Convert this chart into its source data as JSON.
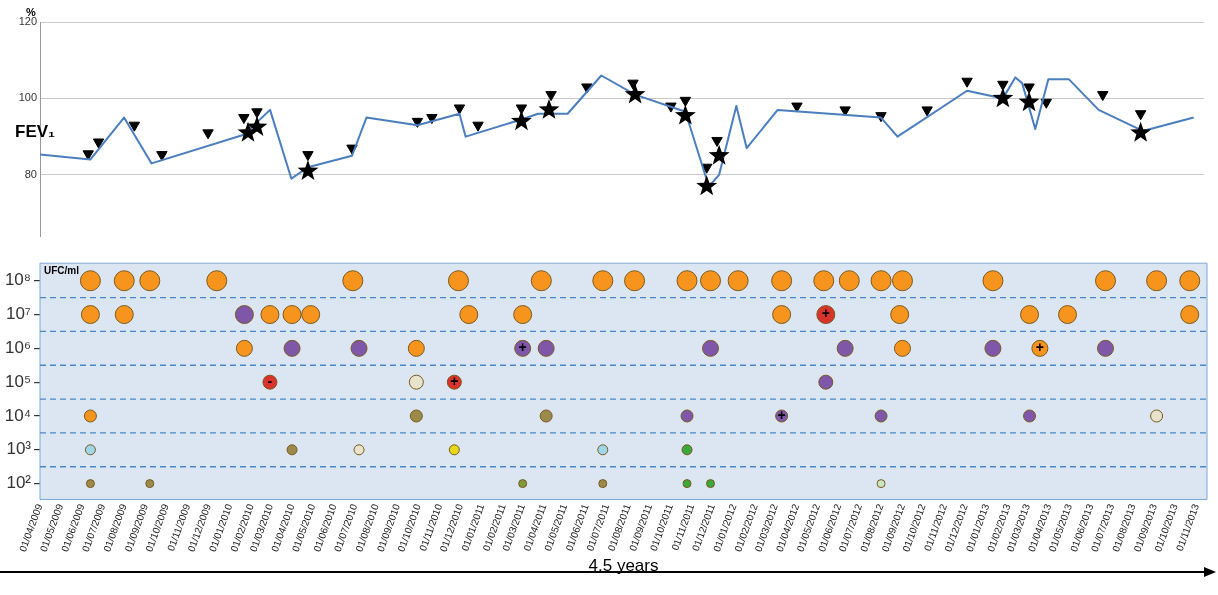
{
  "chart_data": [
    {
      "type": "line",
      "ylabel": "%",
      "xlim": [
        "2009-04-01",
        "2013-11-16"
      ],
      "ylim": [
        64,
        120
      ],
      "yticks": [
        80,
        100,
        120
      ],
      "grid": "y",
      "tick_labels": "y",
      "legend": false,
      "series": [
        {
          "name": "FEV₁",
          "color": "#4a7ebf",
          "marker": "none",
          "x": [
            "2009-04-01",
            "2009-06-13",
            "2009-08-01",
            "2009-09-10",
            "2010-01-22",
            "2010-03-01",
            "2010-04-01",
            "2010-04-25",
            "2010-06-28",
            "2010-07-19",
            "2010-10-01",
            "2010-12-01",
            "2010-12-10",
            "2011-03-01",
            "2011-03-25",
            "2011-05-07",
            "2011-06-25",
            "2011-08-13",
            "2011-10-25",
            "2011-11-28",
            "2011-12-13",
            "2012-01-07",
            "2012-01-22",
            "2012-03-07",
            "2012-08-04",
            "2012-08-28",
            "2012-12-07",
            "2013-01-28",
            "2013-02-15",
            "2013-02-25",
            "2013-03-16",
            "2013-04-04",
            "2013-05-04",
            "2013-06-16",
            "2013-08-19",
            "2013-11-01"
          ],
          "values": [
            85.3,
            84,
            95,
            83,
            90.5,
            97,
            79,
            82,
            85,
            95,
            93,
            96,
            90,
            94.5,
            96,
            96,
            106,
            101,
            96.5,
            77,
            80,
            98,
            87,
            97,
            95,
            90,
            102,
            100,
            105.5,
            104,
            92,
            105,
            105,
            97,
            91.5,
            95
          ]
        },
        {
          "type": "scatter",
          "color": "#000000",
          "marker": "triangle",
          "x": [
            "2009-06-10",
            "2009-06-25",
            "2009-08-16",
            "2009-09-25",
            "2009-12-01",
            "2010-01-22",
            "2010-02-10",
            "2010-04-25",
            "2010-06-28",
            "2010-10-01",
            "2010-10-22",
            "2010-12-01",
            "2010-12-28",
            "2011-03-01",
            "2011-04-13",
            "2011-06-04",
            "2011-08-10",
            "2011-10-04",
            "2011-10-25",
            "2011-11-25",
            "2011-12-10",
            "2012-04-04",
            "2012-06-13",
            "2012-08-04",
            "2012-10-10",
            "2012-12-07",
            "2013-01-28",
            "2013-03-07",
            "2013-04-01",
            "2013-06-22",
            "2013-08-16"
          ],
          "values": [
            85.5,
            88.6,
            93,
            85.3,
            91,
            95,
            96.5,
            85.3,
            87,
            94,
            95,
            97.5,
            93,
            97.5,
            101,
            103,
            104,
            98,
            99.5,
            82,
            89,
            98,
            97,
            95.5,
            97,
            104.5,
            103.7,
            103,
            99,
            101,
            96
          ]
        },
        {
          "type": "scatter",
          "color": "#000000",
          "marker": "star",
          "x": [
            "2010-01-28",
            "2010-02-10",
            "2010-04-25",
            "2011-03-01",
            "2011-04-10",
            "2011-08-13",
            "2011-10-25",
            "2011-11-25",
            "2011-12-13",
            "2013-01-28",
            "2013-03-07",
            "2013-08-16"
          ],
          "values": [
            91,
            92.5,
            81,
            94,
            97,
            101,
            95.5,
            77,
            85,
            100,
            99,
            91
          ]
        }
      ]
    },
    {
      "type": "scatter",
      "ylabel": "UFC/ml",
      "xlabel": "4,5 years",
      "log": "y",
      "xlim": [
        "2009-04-01",
        "2013-11-16"
      ],
      "ylim": [
        34,
        330000000
      ],
      "yticks": [
        {
          "value": 100,
          "label": "10²"
        },
        {
          "value": 1000,
          "label": "10³"
        },
        {
          "value": 10000,
          "label": "10⁴"
        },
        {
          "value": 100000,
          "label": "10⁵"
        },
        {
          "value": 1000000,
          "label": "10⁶"
        },
        {
          "value": 10000000,
          "label": "10⁷"
        },
        {
          "value": 100000000,
          "label": "10⁸"
        }
      ],
      "ref_lines": [
        {
          "axis": "y",
          "value": 316,
          "color": "#4a86c8",
          "line_style": "dashed"
        },
        {
          "axis": "y",
          "value": 3162,
          "color": "#4a86c8",
          "line_style": "dashed"
        },
        {
          "axis": "y",
          "value": 31623,
          "color": "#4a86c8",
          "line_style": "dashed"
        },
        {
          "axis": "y",
          "value": 316228,
          "color": "#4a86c8",
          "line_style": "dashed"
        },
        {
          "axis": "y",
          "value": 3162278,
          "color": "#4a86c8",
          "line_style": "dashed"
        },
        {
          "axis": "y",
          "value": 31622777,
          "color": "#4a86c8",
          "line_style": "dashed"
        }
      ],
      "xticks": [
        {
          "value": "2009-04-01",
          "label": "01/04/2009"
        },
        {
          "value": "2009-05-01",
          "label": "01/05/2009"
        },
        {
          "value": "2009-06-01",
          "label": "01/06/2009"
        },
        {
          "value": "2009-07-01",
          "label": "01/07/2009"
        },
        {
          "value": "2009-08-01",
          "label": "01/08/2009"
        },
        {
          "value": "2009-09-01",
          "label": "01/09/2009"
        },
        {
          "value": "2009-10-01",
          "label": "01/10/2009"
        },
        {
          "value": "2009-11-01",
          "label": "01/11/2009"
        },
        {
          "value": "2009-12-01",
          "label": "01/12/2009"
        },
        {
          "value": "2010-01-01",
          "label": "01/01/2010"
        },
        {
          "value": "2010-02-01",
          "label": "01/02/2010"
        },
        {
          "value": "2010-03-01",
          "label": "01/03/2010"
        },
        {
          "value": "2010-04-01",
          "label": "01/04/2010"
        },
        {
          "value": "2010-05-01",
          "label": "01/05/2010"
        },
        {
          "value": "2010-06-01",
          "label": "01/06/2010"
        },
        {
          "value": "2010-07-01",
          "label": "01/07/2010"
        },
        {
          "value": "2010-08-01",
          "label": "01/08/2010"
        },
        {
          "value": "2010-09-01",
          "label": "01/09/2010"
        },
        {
          "value": "2010-10-01",
          "label": "01/10/2010"
        },
        {
          "value": "2010-11-01",
          "label": "01/11/2010"
        },
        {
          "value": "2010-12-01",
          "label": "01/12/2010"
        },
        {
          "value": "2011-01-01",
          "label": "01/01/2011"
        },
        {
          "value": "2011-02-01",
          "label": "01/02/2011"
        },
        {
          "value": "2011-03-01",
          "label": "01/03/2011"
        },
        {
          "value": "2011-04-01",
          "label": "01/04/2011"
        },
        {
          "value": "2011-05-01",
          "label": "01/05/2011"
        },
        {
          "value": "2011-06-01",
          "label": "01/06/2011"
        },
        {
          "value": "2011-07-01",
          "label": "01/07/2011"
        },
        {
          "value": "2011-08-01",
          "label": "01/08/2011"
        },
        {
          "value": "2011-09-01",
          "label": "01/09/2011"
        },
        {
          "value": "2011-10-01",
          "label": "01/10/2011"
        },
        {
          "value": "2011-11-01",
          "label": "01/11/2011"
        },
        {
          "value": "2011-12-01",
          "label": "01/12/2011"
        },
        {
          "value": "2012-01-01",
          "label": "01/01/2012"
        },
        {
          "value": "2012-02-01",
          "label": "01/02/2012"
        },
        {
          "value": "2012-03-01",
          "label": "01/03/2012"
        },
        {
          "value": "2012-04-01",
          "label": "01/04/2012"
        },
        {
          "value": "2012-05-01",
          "label": "01/05/2012"
        },
        {
          "value": "2012-06-01",
          "label": "01/06/2012"
        },
        {
          "value": "2012-07-01",
          "label": "01/07/2012"
        },
        {
          "value": "2012-08-01",
          "label": "01/08/2012"
        },
        {
          "value": "2012-09-01",
          "label": "01/09/2012"
        },
        {
          "value": "2012-10-01",
          "label": "01/10/2012"
        },
        {
          "value": "2012-11-01",
          "label": "01/11/2012"
        },
        {
          "value": "2012-12-01",
          "label": "01/12/2012"
        },
        {
          "value": "2013-01-01",
          "label": "01/01/2013"
        },
        {
          "value": "2013-02-01",
          "label": "01/02/2013"
        },
        {
          "value": "2013-03-01",
          "label": "01/03/2013"
        },
        {
          "value": "2013-04-01",
          "label": "01/04/2013"
        },
        {
          "value": "2013-05-01",
          "label": "01/05/2013"
        },
        {
          "value": "2013-06-01",
          "label": "01/06/2013"
        },
        {
          "value": "2013-07-01",
          "label": "01/07/2013"
        },
        {
          "value": "2013-08-01",
          "label": "01/08/2013"
        },
        {
          "value": "2013-09-01",
          "label": "01/09/2013"
        },
        {
          "value": "2013-10-01",
          "label": "01/10/2013"
        },
        {
          "value": "2013-11-01",
          "label": "01/11/2013"
        }
      ],
      "legend": false,
      "marker": "circle",
      "series": [
        {
          "x": [
            "2009-06-13",
            "2009-08-01",
            "2009-09-07",
            "2009-12-13",
            "2010-06-28",
            "2010-11-28",
            "2011-03-28",
            "2011-06-25",
            "2011-08-10",
            "2011-10-25",
            "2011-11-28",
            "2012-01-07",
            "2012-03-10",
            "2012-05-10",
            "2012-06-16",
            "2012-08-01",
            "2012-09-01",
            "2013-01-10",
            "2013-06-22",
            "2013-09-04",
            "2013-10-22"
          ],
          "values": [
            100000000,
            100000000,
            100000000,
            100000000,
            100000000,
            100000000,
            100000000,
            100000000,
            100000000,
            100000000,
            100000000,
            100000000,
            100000000,
            100000000,
            100000000,
            100000000,
            100000000,
            100000000,
            100000000,
            100000000,
            100000000
          ],
          "colors": [
            "#f7941d",
            "#f7941d",
            "#f7941d",
            "#f7941d",
            "#f7941d",
            "#f7941d",
            "#f7941d",
            "#f7941d",
            "#f7941d",
            "#f7941d",
            "#f7941d",
            "#f7941d",
            "#f7941d",
            "#f7941d",
            "#f7941d",
            "#f7941d",
            "#f7941d",
            "#f7941d",
            "#f7941d",
            "#f7941d",
            "#f7941d"
          ]
        },
        {
          "x": [
            "2009-06-13",
            "2009-08-01",
            "2010-01-22",
            "2010-02-28",
            "2010-04-01",
            "2010-04-28",
            "2010-12-13",
            "2011-03-01",
            "2012-03-10",
            "2012-05-13",
            "2012-08-28",
            "2013-03-04",
            "2013-04-28",
            "2013-10-22"
          ],
          "values": [
            10000000,
            10000000,
            10000000,
            10000000,
            10000000,
            10000000,
            10000000,
            10000000,
            10000000,
            10000000,
            10000000,
            10000000,
            10000000,
            10000000
          ],
          "colors": [
            "#f7941d",
            "#f7941d",
            "#7e57a8",
            "#f7941d",
            "#f7941d",
            "#f7941d",
            "#f7941d",
            "#f7941d",
            "#f7941d",
            "#d9342b",
            "#f7941d",
            "#f7941d",
            "#f7941d",
            "#f7941d"
          ]
        },
        {
          "x": [
            "2010-01-22",
            "2010-04-01",
            "2010-07-07",
            "2010-09-28",
            "2011-03-01",
            "2011-04-04",
            "2011-11-28",
            "2012-06-10",
            "2012-09-01",
            "2013-01-10",
            "2013-03-19",
            "2013-06-22"
          ],
          "values": [
            1000000,
            1000000,
            1000000,
            1000000,
            1000000,
            1000000,
            1000000,
            1000000,
            1000000,
            1000000,
            1000000,
            1000000
          ],
          "colors": [
            "#f7941d",
            "#7e57a8",
            "#7e57a8",
            "#f7941d",
            "#7e57a8",
            "#7e57a8",
            "#7e57a8",
            "#7e57a8",
            "#f7941d",
            "#7e57a8",
            "#f7941d",
            "#7e57a8"
          ]
        },
        {
          "x": [
            "2010-02-28",
            "2010-09-28",
            "2010-11-22",
            "2012-05-13"
          ],
          "values": [
            100000,
            100000,
            100000,
            100000
          ],
          "colors": [
            "#d9342b",
            "#e8e4cc",
            "#d9342b",
            "#7e57a8"
          ]
        },
        {
          "x": [
            "2009-06-13",
            "2010-09-28",
            "2011-04-04",
            "2011-10-25",
            "2012-03-10",
            "2012-08-01",
            "2013-03-04",
            "2013-09-04"
          ],
          "values": [
            10000,
            10000,
            10000,
            10000,
            10000,
            10000,
            10000,
            10000
          ],
          "colors": [
            "#f7941d",
            "#9c8a4a",
            "#9c8a4a",
            "#7e57a8",
            "#7e57a8",
            "#7e57a8",
            "#7e57a8",
            "#e8e4cc"
          ]
        },
        {
          "x": [
            "2009-06-13",
            "2010-04-01",
            "2010-07-07",
            "2010-11-22",
            "2011-06-25",
            "2011-10-25"
          ],
          "values": [
            1000,
            1000,
            1000,
            1000,
            1000,
            1000
          ],
          "colors": [
            "#9fd6ea",
            "#9c8a4a",
            "#e8e4cc",
            "#e6d817",
            "#9fd6ea",
            "#3aa83a"
          ]
        },
        {
          "x": [
            "2009-06-13",
            "2009-09-07",
            "2011-03-01",
            "2011-06-25",
            "2011-10-25",
            "2011-11-28",
            "2012-08-01"
          ],
          "values": [
            100,
            100,
            100,
            100,
            100,
            100,
            100
          ],
          "colors": [
            "#9c8a4a",
            "#9c8a4a",
            "#7f9a3a",
            "#9c8a4a",
            "#3aa83a",
            "#3aa83a",
            "#c8e6c0"
          ]
        }
      ],
      "annotations": [
        {
          "text": "+",
          "x": "2011-03-01",
          "y": 1000000
        },
        {
          "text": "+",
          "x": "2010-11-22",
          "y": 100000
        },
        {
          "text": "+",
          "x": "2012-05-13",
          "y": 10000000
        },
        {
          "text": "+",
          "x": "2012-03-10",
          "y": 10000
        },
        {
          "text": "+",
          "x": "2013-03-19",
          "y": 1000000
        },
        {
          "text": "-",
          "x": "2010-02-28",
          "y": 100000
        }
      ]
    }
  ]
}
